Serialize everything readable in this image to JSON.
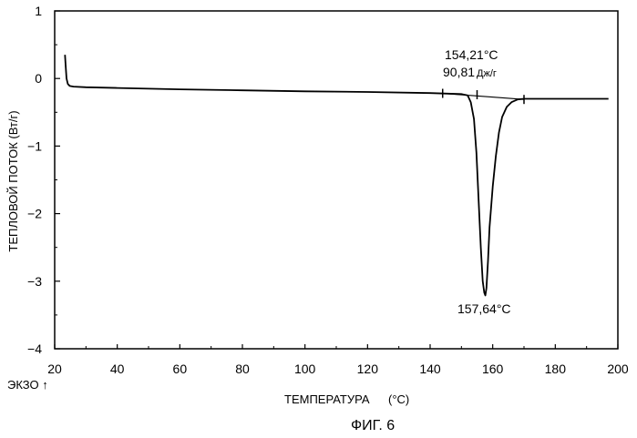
{
  "chart_data": {
    "type": "line",
    "ylabel": "ТЕПЛОВОЙ ПОТОК (Вт/г)",
    "xlabel_main": "ТЕМПЕРАТУРА",
    "xlabel_unit": "(°C)",
    "exo_label": "ЭКЗО ↑",
    "caption": "ФИГ. 6",
    "xlim": [
      20,
      200
    ],
    "ylim": [
      -4,
      1
    ],
    "x_ticks": [
      20,
      40,
      60,
      80,
      100,
      120,
      140,
      160,
      180,
      200
    ],
    "y_ticks": [
      1,
      0,
      -1,
      -2,
      -3,
      -4
    ],
    "y_tick_labels": [
      "1",
      "0",
      "−1",
      "−2",
      "−3",
      "−4"
    ],
    "grid": false,
    "series": [
      {
        "x": [
          23.3,
          23.5,
          23.8,
          24.2,
          24.8,
          26,
          30,
          40,
          60,
          80,
          100,
          120,
          140,
          150,
          152,
          153,
          154,
          154.8,
          155.5,
          156.2,
          156.8,
          157.3,
          157.64,
          158,
          158.5,
          159,
          160,
          161,
          162,
          163,
          164.5,
          166,
          168,
          170,
          175,
          180,
          190,
          197
        ],
        "y": [
          0.35,
          0.2,
          0.0,
          -0.08,
          -0.11,
          -0.12,
          -0.13,
          -0.14,
          -0.16,
          -0.175,
          -0.19,
          -0.2,
          -0.215,
          -0.23,
          -0.25,
          -0.35,
          -0.6,
          -1.1,
          -1.8,
          -2.5,
          -3.0,
          -3.17,
          -3.21,
          -3.1,
          -2.7,
          -2.2,
          -1.6,
          -1.15,
          -0.8,
          -0.57,
          -0.42,
          -0.35,
          -0.31,
          -0.3,
          -0.3,
          -0.3,
          -0.3,
          -0.3
        ]
      }
    ],
    "baseline": {
      "x": [
        144,
        170
      ],
      "y": [
        -0.22,
        -0.31
      ]
    },
    "tick_marks": [
      {
        "x": 144,
        "y": -0.22
      },
      {
        "x": 155,
        "y": -0.24
      },
      {
        "x": 170,
        "y": -0.31
      }
    ],
    "annotations": {
      "onset_temp": "154,21°C",
      "enthalpy_value": "90,81",
      "enthalpy_unit": "Дж/г",
      "peak_temp": "157,64°C"
    }
  }
}
